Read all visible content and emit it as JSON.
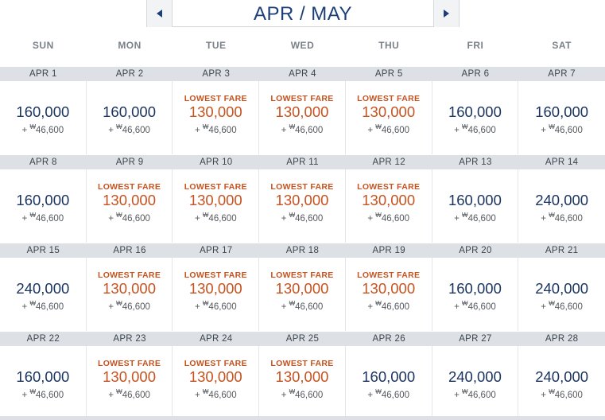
{
  "nav": {
    "title": "APR / MAY",
    "prev_icon": "chevron-left-icon",
    "next_icon": "chevron-right-icon"
  },
  "weekdays": [
    "SUN",
    "MON",
    "TUE",
    "WED",
    "THU",
    "FRI",
    "SAT"
  ],
  "colors": {
    "brand_navy": "#1c3f7a",
    "lowest_fare_orange": "#c6531f",
    "date_bar": "#dde1e6"
  },
  "lowest_label": "LOWEST FARE",
  "tax_prefix": "+ ",
  "currency_symbol": "₩",
  "weeks": [
    {
      "days": [
        {
          "date": "APR 1",
          "price": "160,000",
          "tax": "46,600",
          "lowest": false
        },
        {
          "date": "APR 2",
          "price": "160,000",
          "tax": "46,600",
          "lowest": false
        },
        {
          "date": "APR 3",
          "price": "130,000",
          "tax": "46,600",
          "lowest": true
        },
        {
          "date": "APR 4",
          "price": "130,000",
          "tax": "46,600",
          "lowest": true
        },
        {
          "date": "APR 5",
          "price": "130,000",
          "tax": "46,600",
          "lowest": true
        },
        {
          "date": "APR 6",
          "price": "160,000",
          "tax": "46,600",
          "lowest": false
        },
        {
          "date": "APR 7",
          "price": "160,000",
          "tax": "46,600",
          "lowest": false
        }
      ]
    },
    {
      "days": [
        {
          "date": "APR 8",
          "price": "160,000",
          "tax": "46,600",
          "lowest": false
        },
        {
          "date": "APR 9",
          "price": "130,000",
          "tax": "46,600",
          "lowest": true
        },
        {
          "date": "APR 10",
          "price": "130,000",
          "tax": "46,600",
          "lowest": true
        },
        {
          "date": "APR 11",
          "price": "130,000",
          "tax": "46,600",
          "lowest": true
        },
        {
          "date": "APR 12",
          "price": "130,000",
          "tax": "46,600",
          "lowest": true
        },
        {
          "date": "APR 13",
          "price": "160,000",
          "tax": "46,600",
          "lowest": false
        },
        {
          "date": "APR 14",
          "price": "240,000",
          "tax": "46,600",
          "lowest": false
        }
      ]
    },
    {
      "days": [
        {
          "date": "APR 15",
          "price": "240,000",
          "tax": "46,600",
          "lowest": false
        },
        {
          "date": "APR 16",
          "price": "130,000",
          "tax": "46,600",
          "lowest": true
        },
        {
          "date": "APR 17",
          "price": "130,000",
          "tax": "46,600",
          "lowest": true
        },
        {
          "date": "APR 18",
          "price": "130,000",
          "tax": "46,600",
          "lowest": true
        },
        {
          "date": "APR 19",
          "price": "130,000",
          "tax": "46,600",
          "lowest": true
        },
        {
          "date": "APR 20",
          "price": "160,000",
          "tax": "46,600",
          "lowest": false
        },
        {
          "date": "APR 21",
          "price": "240,000",
          "tax": "46,600",
          "lowest": false
        }
      ]
    },
    {
      "days": [
        {
          "date": "APR 22",
          "price": "160,000",
          "tax": "46,600",
          "lowest": false
        },
        {
          "date": "APR 23",
          "price": "130,000",
          "tax": "46,600",
          "lowest": true
        },
        {
          "date": "APR 24",
          "price": "130,000",
          "tax": "46,600",
          "lowest": true
        },
        {
          "date": "APR 25",
          "price": "130,000",
          "tax": "46,600",
          "lowest": true
        },
        {
          "date": "APR 26",
          "price": "160,000",
          "tax": "46,600",
          "lowest": false
        },
        {
          "date": "APR 27",
          "price": "240,000",
          "tax": "46,600",
          "lowest": false
        },
        {
          "date": "APR 28",
          "price": "240,000",
          "tax": "46,600",
          "lowest": false
        }
      ]
    }
  ]
}
